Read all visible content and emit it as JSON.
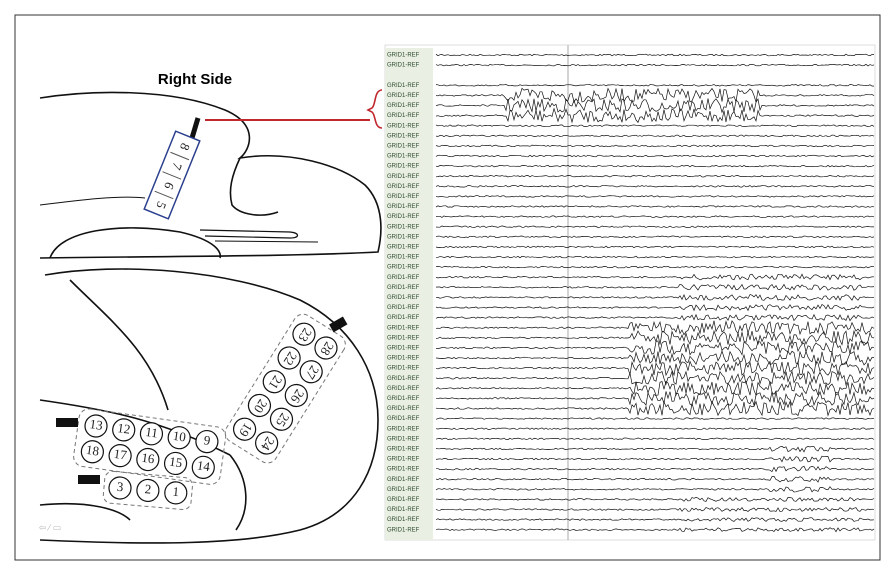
{
  "title": "Right Side",
  "strip": [
    "8",
    "7",
    "6",
    "5"
  ],
  "grid_a": {
    "top": [
      "13",
      "12",
      "11",
      "10",
      "9"
    ],
    "bottom": [
      "18",
      "17",
      "16",
      "15",
      "14"
    ]
  },
  "grid_b": {
    "top": [
      "28",
      "27",
      "26",
      "25",
      "24"
    ],
    "bottom": [
      "23",
      "22",
      "21",
      "20",
      "19"
    ]
  },
  "grid_c": [
    "3",
    "2",
    "1"
  ],
  "channel_label": "GRID1-REF"
}
